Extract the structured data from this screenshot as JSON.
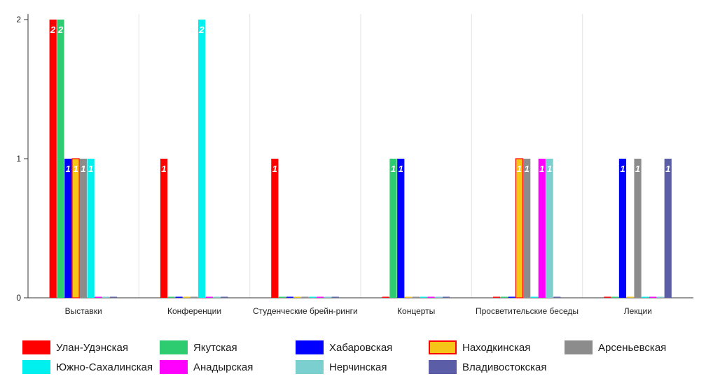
{
  "chart_data": {
    "type": "bar",
    "categories": [
      "Выставки",
      "Конференции",
      "Студенческие брейн-ринги",
      "Концерты",
      "Просветительские беседы",
      "Лекции"
    ],
    "ylim": [
      0,
      2
    ],
    "y_ticks": [
      "0",
      "1",
      "2"
    ],
    "grid": "vertical",
    "legend_placement": "bottom",
    "series": [
      {
        "name": "Улан-Удэнская",
        "color": "#ff0000",
        "values": [
          2,
          1,
          1,
          0,
          0,
          0
        ]
      },
      {
        "name": "Якутская",
        "color": "#2ecc71",
        "values": [
          2,
          0,
          0,
          1,
          0,
          0
        ]
      },
      {
        "name": "Хабаровская",
        "color": "#0000ff",
        "values": [
          1,
          0,
          0,
          1,
          0,
          1
        ]
      },
      {
        "name": "Находкинская",
        "color": "#f5c518",
        "border": "#ff0000",
        "values": [
          1,
          0,
          0,
          0,
          1,
          0
        ]
      },
      {
        "name": "Арсеньевская",
        "color": "#8c8c8c",
        "values": [
          1,
          0,
          0,
          0,
          1,
          1
        ]
      },
      {
        "name": "Южно-Сахалинская",
        "color": "#00f0f0",
        "values": [
          1,
          2,
          0,
          0,
          0,
          0
        ]
      },
      {
        "name": "Анадырская",
        "color": "#ff00ff",
        "values": [
          0,
          0,
          0,
          0,
          1,
          0
        ]
      },
      {
        "name": "Нерчинская",
        "color": "#7ccfcf",
        "values": [
          0,
          0,
          0,
          0,
          1,
          0
        ]
      },
      {
        "name": "Владивостокская",
        "color": "#5b5ea6",
        "values": [
          0,
          0,
          0,
          0,
          0,
          1
        ]
      }
    ]
  }
}
